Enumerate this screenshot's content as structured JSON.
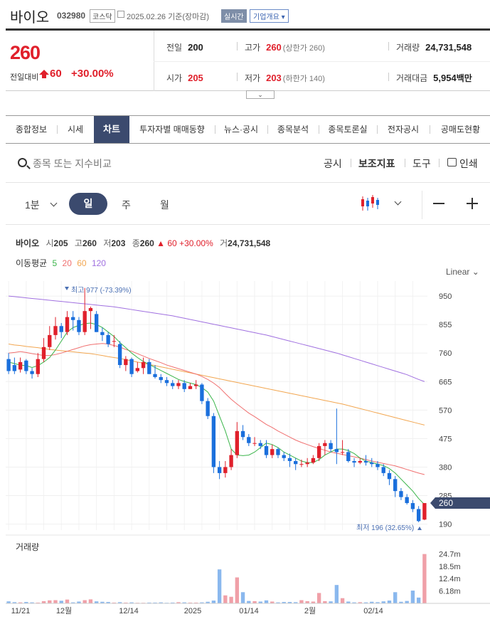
{
  "stock": {
    "name": "바이오",
    "code": "032980",
    "market": "코스닥",
    "date": "2025.02.26",
    "basis": "기준(장마감)",
    "realtime": "실시간",
    "overview": "기업개요",
    "price": "260",
    "change_label": "전일대비",
    "change": "60",
    "change_pct": "+30.00%",
    "prev": {
      "label": "전일",
      "value": "200"
    },
    "high": {
      "label": "고가",
      "value": "260",
      "note": "(상한가 260)"
    },
    "volume": {
      "label": "거래량",
      "value": "24,731,548"
    },
    "open": {
      "label": "시가",
      "value": "205"
    },
    "low": {
      "label": "저가",
      "value": "203",
      "note": "(하한가 140)"
    },
    "amount": {
      "label": "거래대금",
      "value": "5,954",
      "unit": "백만"
    }
  },
  "tabs": [
    "종합정보",
    "시세",
    "차트",
    "투자자별 매매동향",
    "뉴스·공시",
    "종목분석",
    "종목토론실",
    "전자공시",
    "공매도현황"
  ],
  "active_tab": "차트",
  "search": {
    "placeholder": "종목 또는 지수비교"
  },
  "tools": {
    "notice": "공시",
    "indicator": "보조지표",
    "tools": "도구",
    "print": "인쇄"
  },
  "periods": {
    "minute": "1분",
    "day": "일",
    "week": "주",
    "month": "월"
  },
  "info_line": {
    "name": "바이오",
    "open_k": "시",
    "open": "205",
    "high_k": "고",
    "high": "260",
    "low_k": "저",
    "low": "203",
    "close_k": "종",
    "close": "260",
    "chg": "▲ 60",
    "chg_pct": "+30.00%",
    "vol_k": "거",
    "vol": "24,731,548"
  },
  "moving_avg": {
    "label": "이동평균",
    "ma5": "5",
    "ma20": "20",
    "ma60": "60",
    "ma120": "120"
  },
  "scale": "Linear",
  "colors": {
    "up": "#e0202b",
    "down": "#1a6fdc",
    "ma5": "#3ab54a",
    "ma20": "#f07070",
    "ma60": "#f2a650",
    "ma120": "#a070e0",
    "accent": "#3b4a6e"
  },
  "chart_data": {
    "type": "candlestick",
    "price_axis": [
      950,
      855,
      760,
      665,
      570,
      475,
      380,
      285,
      190
    ],
    "price_range": [
      170,
      1000
    ],
    "current_price_label": "260",
    "max_label": "최고 977 (-73.39%)",
    "min_label": "최저 196 (32.65%)",
    "x_labels": [
      "11/21",
      "12월",
      "12/14",
      "2025",
      "01/14",
      "2월",
      "02/14"
    ],
    "volume_label": "거래량",
    "volume_axis": [
      "24.7m",
      "18.5m",
      "12.4m",
      "6.18m"
    ],
    "volume_max": 26.0,
    "candles": [
      [
        740,
        700,
        760,
        690
      ],
      [
        720,
        700,
        745,
        690
      ],
      [
        705,
        730,
        745,
        695
      ],
      [
        735,
        700,
        740,
        690
      ],
      [
        700,
        690,
        710,
        675
      ],
      [
        690,
        740,
        760,
        680
      ],
      [
        740,
        780,
        810,
        730
      ],
      [
        780,
        820,
        850,
        770
      ],
      [
        820,
        850,
        880,
        805
      ],
      [
        850,
        830,
        860,
        810
      ],
      [
        830,
        880,
        900,
        820
      ],
      [
        880,
        870,
        900,
        835
      ],
      [
        870,
        830,
        880,
        820
      ],
      [
        830,
        900,
        977,
        820
      ],
      [
        900,
        910,
        915,
        840
      ],
      [
        890,
        830,
        900,
        830
      ],
      [
        830,
        820,
        845,
        800
      ],
      [
        820,
        790,
        830,
        780
      ],
      [
        800,
        800,
        820,
        780
      ],
      [
        790,
        720,
        800,
        710
      ],
      [
        720,
        740,
        750,
        700
      ],
      [
        740,
        690,
        745,
        680
      ],
      [
        700,
        710,
        730,
        695
      ],
      [
        710,
        730,
        745,
        690
      ],
      [
        730,
        690,
        740,
        690
      ],
      [
        690,
        680,
        720,
        675
      ],
      [
        680,
        670,
        690,
        660
      ],
      [
        670,
        660,
        680,
        650
      ],
      [
        660,
        650,
        670,
        640
      ],
      [
        650,
        660,
        670,
        640
      ],
      [
        660,
        640,
        670,
        630
      ],
      [
        640,
        650,
        660,
        640
      ],
      [
        650,
        655,
        670,
        640
      ],
      [
        655,
        600,
        660,
        590
      ],
      [
        600,
        550,
        610,
        540
      ],
      [
        550,
        380,
        560,
        360
      ],
      [
        380,
        360,
        400,
        340
      ],
      [
        360,
        380,
        400,
        345
      ],
      [
        380,
        420,
        440,
        370
      ],
      [
        420,
        500,
        530,
        410
      ],
      [
        500,
        480,
        520,
        470
      ],
      [
        480,
        460,
        490,
        450
      ],
      [
        460,
        460,
        480,
        450
      ],
      [
        460,
        450,
        470,
        440
      ],
      [
        450,
        420,
        470,
        410
      ],
      [
        420,
        440,
        455,
        410
      ],
      [
        440,
        420,
        445,
        410
      ],
      [
        420,
        410,
        430,
        400
      ],
      [
        410,
        400,
        425,
        380
      ],
      [
        400,
        390,
        410,
        370
      ],
      [
        390,
        390,
        405,
        380
      ],
      [
        390,
        395,
        410,
        380
      ],
      [
        395,
        410,
        420,
        390
      ],
      [
        410,
        450,
        460,
        400
      ],
      [
        450,
        460,
        470,
        420
      ],
      [
        460,
        440,
        470,
        430
      ],
      [
        440,
        430,
        575,
        390
      ],
      [
        430,
        430,
        470,
        420
      ],
      [
        430,
        400,
        440,
        395
      ],
      [
        400,
        395,
        410,
        380
      ],
      [
        395,
        400,
        410,
        390
      ],
      [
        400,
        395,
        420,
        385
      ],
      [
        395,
        390,
        410,
        380
      ],
      [
        390,
        380,
        400,
        370
      ],
      [
        380,
        360,
        390,
        350
      ],
      [
        360,
        340,
        370,
        320
      ],
      [
        340,
        300,
        350,
        280
      ],
      [
        300,
        280,
        310,
        270
      ],
      [
        280,
        260,
        290,
        255
      ],
      [
        260,
        240,
        270,
        230
      ],
      [
        240,
        200,
        250,
        196
      ],
      [
        205,
        260,
        260,
        203
      ]
    ],
    "volumes": [
      1.0,
      0.6,
      0.5,
      0.7,
      0.5,
      0.4,
      1.1,
      1.5,
      1.6,
      1.3,
      1.9,
      0.5,
      0.9,
      1.6,
      2.0,
      1.0,
      0.8,
      0.7,
      0.4,
      0.6,
      0.4,
      0.5,
      0.3,
      0.3,
      0.4,
      0.4,
      0.5,
      0.3,
      0.4,
      0.6,
      0.5,
      0.4,
      0.4,
      0.5,
      0.8,
      1.4,
      17.0,
      4.0,
      3.3,
      13.0,
      5.6,
      1.2,
      1.1,
      0.9,
      1.5,
      0.9,
      0.5,
      0.7,
      0.7,
      0.6,
      1.6,
      1.1,
      0.9,
      5.2,
      1.1,
      1.0,
      9.2,
      2.6,
      0.9,
      0.5,
      0.6,
      0.5,
      0.8,
      0.6,
      1.0,
      1.4,
      5.6,
      0.8,
      1.2,
      6.4,
      2.9,
      24.7
    ],
    "ma5": [
      730,
      725,
      720,
      718,
      712,
      718,
      730,
      745,
      770,
      800,
      830,
      845,
      852,
      858,
      860,
      855,
      845,
      830,
      815,
      795,
      778,
      760,
      745,
      732,
      722,
      712,
      702,
      692,
      682,
      672,
      665,
      660,
      655,
      645,
      630,
      600,
      550,
      500,
      440,
      420,
      418,
      420,
      430,
      445,
      460,
      455,
      445,
      430,
      420,
      410,
      400,
      395,
      395,
      405,
      420,
      430,
      440,
      440,
      435,
      425,
      410,
      400,
      395,
      390,
      385,
      375,
      360,
      340,
      320,
      300,
      275,
      255
    ],
    "ma20": [
      760,
      762,
      765,
      762,
      758,
      755,
      752,
      752,
      755,
      760,
      766,
      772,
      778,
      784,
      788,
      790,
      792,
      790,
      785,
      780,
      772,
      766,
      758,
      750,
      742,
      735,
      728,
      720,
      714,
      708,
      702,
      696,
      690,
      682,
      672,
      660,
      645,
      625,
      606,
      590,
      575,
      560,
      548,
      535,
      522,
      512,
      500,
      490,
      480,
      470,
      462,
      455,
      448,
      442,
      436,
      430,
      426,
      422,
      418,
      414,
      410,
      405,
      400,
      396,
      392,
      388,
      384,
      378,
      372,
      366,
      360,
      355
    ],
    "ma60": [
      790,
      787,
      785,
      782,
      780,
      778,
      775,
      772,
      770,
      768,
      766,
      764,
      762,
      760,
      758,
      755,
      752,
      748,
      745,
      742,
      738,
      734,
      730,
      726,
      722,
      718,
      714,
      710,
      706,
      702,
      698,
      694,
      690,
      686,
      682,
      678,
      674,
      670,
      666,
      662,
      658,
      654,
      650,
      646,
      642,
      638,
      634,
      630,
      626,
      622,
      618,
      614,
      610,
      606,
      602,
      598,
      594,
      590,
      585,
      580,
      575,
      570,
      565,
      560,
      555,
      550,
      545,
      540,
      535,
      530,
      525,
      520
    ],
    "ma120": [
      950,
      948,
      946,
      944,
      942,
      940,
      938,
      936,
      934,
      932,
      930,
      928,
      926,
      924,
      922,
      920,
      918,
      916,
      914,
      911,
      908,
      905,
      902,
      899,
      896,
      893,
      890,
      887,
      884,
      880,
      876,
      872,
      868,
      864,
      860,
      856,
      852,
      848,
      844,
      840,
      836,
      832,
      828,
      824,
      820,
      815,
      810,
      805,
      800,
      795,
      790,
      785,
      780,
      775,
      770,
      765,
      760,
      754,
      748,
      742,
      736,
      730,
      724,
      718,
      712,
      706,
      700,
      694,
      688,
      680,
      672,
      665
    ]
  }
}
